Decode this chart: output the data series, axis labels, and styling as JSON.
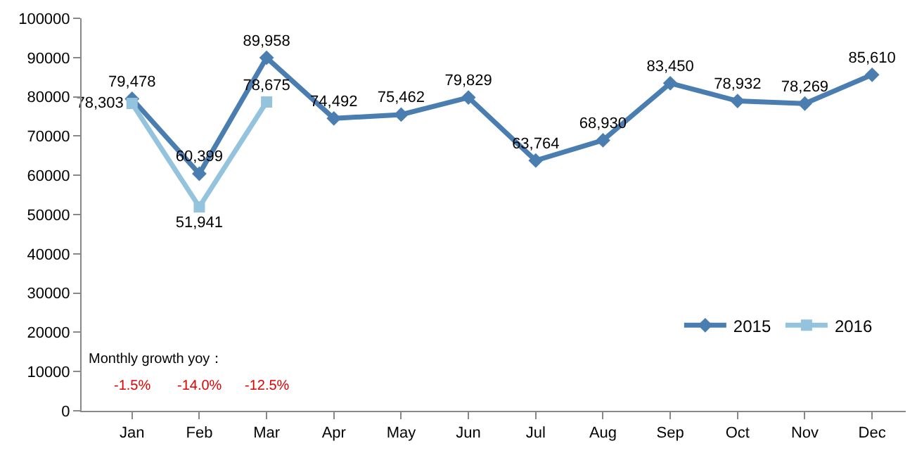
{
  "chart_data": {
    "type": "line",
    "categories": [
      "Jan",
      "Feb",
      "Mar",
      "Apr",
      "May",
      "Jun",
      "Jul",
      "Aug",
      "Sep",
      "Oct",
      "Nov",
      "Dec"
    ],
    "series": [
      {
        "name": "2015",
        "color": "#4a7eb0",
        "marker": "diamond",
        "values": [
          79478,
          60399,
          89958,
          74492,
          75462,
          79829,
          63764,
          68930,
          83450,
          78932,
          78269,
          85610
        ],
        "value_labels": [
          "79,478",
          "60,399",
          "89,958",
          "74,492",
          "75,462",
          "79,829",
          "63,764",
          "68,930",
          "83,450",
          "78,932",
          "78,269",
          "85,610"
        ]
      },
      {
        "name": "2016",
        "color": "#93c3dd",
        "marker": "square",
        "values": [
          78303,
          51941,
          78675,
          null,
          null,
          null,
          null,
          null,
          null,
          null,
          null,
          null
        ],
        "value_labels": [
          "78,303",
          "51,941",
          "78,675",
          null,
          null,
          null,
          null,
          null,
          null,
          null,
          null,
          null
        ]
      }
    ],
    "ylim": [
      0,
      100000
    ],
    "yticks": [
      0,
      10000,
      20000,
      30000,
      40000,
      50000,
      60000,
      70000,
      80000,
      90000,
      100000
    ],
    "legend": "bottom right",
    "line_style": "solid",
    "annotations": [
      "Monthly growth yoy：",
      "-1.5%",
      "-14.0%",
      "-12.5%"
    ]
  }
}
